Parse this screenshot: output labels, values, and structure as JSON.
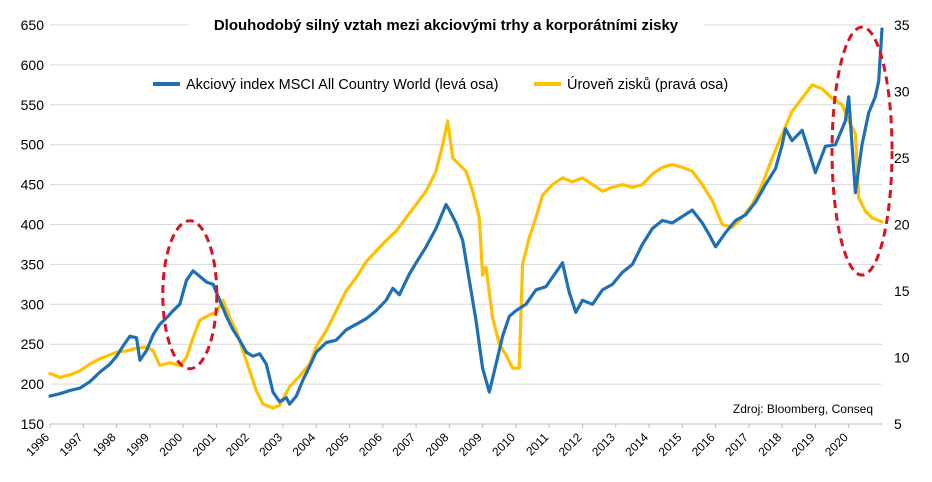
{
  "chart_data": {
    "type": "line",
    "title": "Dlouhodobý silný vztah mezi akciovými trhy a korporátními zisky",
    "source": "Zdroj: Bloomberg, Conseq",
    "x_range": [
      1996,
      2021
    ],
    "x_tick_labels": [
      "1996",
      "1997",
      "1998",
      "1999",
      "2000",
      "2001",
      "2002",
      "2003",
      "2004",
      "2005",
      "2006",
      "2007",
      "2008",
      "2009",
      "2010",
      "2011",
      "2012",
      "2013",
      "2014",
      "2015",
      "2016",
      "2017",
      "2018",
      "2019",
      "2020"
    ],
    "y_left": {
      "min": 150,
      "max": 650,
      "ticks": [
        150,
        200,
        250,
        300,
        350,
        400,
        450,
        500,
        550,
        600,
        650
      ]
    },
    "y_right": {
      "min": 5,
      "max": 35,
      "ticks": [
        5,
        10,
        15,
        20,
        25,
        30,
        35
      ]
    },
    "grid": "horizontal",
    "legend_position": "top",
    "series": [
      {
        "name": "Akciový index MSCI All Country World (levá osa)",
        "axis": "left",
        "color": "#1F6FB5",
        "points": [
          [
            1996.0,
            185
          ],
          [
            1996.3,
            188
          ],
          [
            1996.6,
            192
          ],
          [
            1996.9,
            195
          ],
          [
            1997.2,
            203
          ],
          [
            1997.5,
            215
          ],
          [
            1997.8,
            225
          ],
          [
            1998.0,
            235
          ],
          [
            1998.2,
            248
          ],
          [
            1998.4,
            260
          ],
          [
            1998.6,
            258
          ],
          [
            1998.7,
            230
          ],
          [
            1998.9,
            242
          ],
          [
            1999.1,
            262
          ],
          [
            1999.3,
            275
          ],
          [
            1999.5,
            283
          ],
          [
            1999.7,
            292
          ],
          [
            1999.9,
            300
          ],
          [
            2000.1,
            330
          ],
          [
            2000.3,
            342
          ],
          [
            2000.5,
            335
          ],
          [
            2000.7,
            328
          ],
          [
            2000.9,
            325
          ],
          [
            2001.1,
            305
          ],
          [
            2001.3,
            285
          ],
          [
            2001.5,
            268
          ],
          [
            2001.7,
            255
          ],
          [
            2001.9,
            240
          ],
          [
            2002.1,
            235
          ],
          [
            2002.3,
            238
          ],
          [
            2002.5,
            225
          ],
          [
            2002.7,
            190
          ],
          [
            2002.9,
            178
          ],
          [
            2003.1,
            183
          ],
          [
            2003.2,
            175
          ],
          [
            2003.4,
            185
          ],
          [
            2003.6,
            205
          ],
          [
            2003.8,
            222
          ],
          [
            2004.0,
            240
          ],
          [
            2004.3,
            252
          ],
          [
            2004.6,
            255
          ],
          [
            2004.9,
            268
          ],
          [
            2005.2,
            275
          ],
          [
            2005.5,
            282
          ],
          [
            2005.8,
            292
          ],
          [
            2006.1,
            305
          ],
          [
            2006.3,
            320
          ],
          [
            2006.5,
            312
          ],
          [
            2006.8,
            338
          ],
          [
            2007.0,
            352
          ],
          [
            2007.3,
            372
          ],
          [
            2007.6,
            395
          ],
          [
            2007.9,
            425
          ],
          [
            2008.0,
            418
          ],
          [
            2008.2,
            402
          ],
          [
            2008.4,
            380
          ],
          [
            2008.6,
            330
          ],
          [
            2008.8,
            280
          ],
          [
            2009.0,
            220
          ],
          [
            2009.2,
            190
          ],
          [
            2009.4,
            225
          ],
          [
            2009.6,
            260
          ],
          [
            2009.8,
            285
          ],
          [
            2010.0,
            292
          ],
          [
            2010.3,
            300
          ],
          [
            2010.6,
            318
          ],
          [
            2010.9,
            322
          ],
          [
            2011.2,
            340
          ],
          [
            2011.4,
            352
          ],
          [
            2011.6,
            315
          ],
          [
            2011.8,
            290
          ],
          [
            2012.0,
            305
          ],
          [
            2012.3,
            300
          ],
          [
            2012.6,
            318
          ],
          [
            2012.9,
            325
          ],
          [
            2013.2,
            340
          ],
          [
            2013.5,
            350
          ],
          [
            2013.8,
            375
          ],
          [
            2014.1,
            395
          ],
          [
            2014.4,
            405
          ],
          [
            2014.7,
            402
          ],
          [
            2015.0,
            410
          ],
          [
            2015.3,
            418
          ],
          [
            2015.6,
            402
          ],
          [
            2015.8,
            388
          ],
          [
            2016.0,
            372
          ],
          [
            2016.3,
            390
          ],
          [
            2016.6,
            405
          ],
          [
            2016.9,
            412
          ],
          [
            2017.2,
            428
          ],
          [
            2017.5,
            450
          ],
          [
            2017.8,
            470
          ],
          [
            2018.0,
            500
          ],
          [
            2018.1,
            520
          ],
          [
            2018.3,
            505
          ],
          [
            2018.6,
            518
          ],
          [
            2018.8,
            492
          ],
          [
            2019.0,
            465
          ],
          [
            2019.3,
            498
          ],
          [
            2019.6,
            500
          ],
          [
            2019.9,
            530
          ],
          [
            2020.0,
            560
          ],
          [
            2020.1,
            500
          ],
          [
            2020.2,
            440
          ],
          [
            2020.4,
            500
          ],
          [
            2020.6,
            540
          ],
          [
            2020.8,
            560
          ],
          [
            2020.9,
            580
          ],
          [
            2021.0,
            645
          ]
        ]
      },
      {
        "name": "Úroveň zisků (pravá osa)",
        "axis": "right",
        "color": "#FFC000",
        "points": [
          [
            1996.0,
            8.8
          ],
          [
            1996.3,
            8.5
          ],
          [
            1996.6,
            8.7
          ],
          [
            1996.9,
            9.0
          ],
          [
            1997.2,
            9.5
          ],
          [
            1997.5,
            9.9
          ],
          [
            1997.8,
            10.2
          ],
          [
            1998.0,
            10.4
          ],
          [
            1998.3,
            10.5
          ],
          [
            1998.6,
            10.7
          ],
          [
            1998.9,
            10.8
          ],
          [
            1999.1,
            10.5
          ],
          [
            1999.3,
            9.4
          ],
          [
            1999.6,
            9.6
          ],
          [
            1999.9,
            9.4
          ],
          [
            2000.1,
            10.0
          ],
          [
            2000.3,
            11.5
          ],
          [
            2000.5,
            12.8
          ],
          [
            2000.8,
            13.2
          ],
          [
            2001.0,
            13.4
          ],
          [
            2001.2,
            14.3
          ],
          [
            2001.4,
            13.0
          ],
          [
            2001.6,
            12.0
          ],
          [
            2001.8,
            10.5
          ],
          [
            2002.0,
            9.0
          ],
          [
            2002.2,
            7.5
          ],
          [
            2002.4,
            6.5
          ],
          [
            2002.7,
            6.2
          ],
          [
            2002.9,
            6.4
          ],
          [
            2003.2,
            7.8
          ],
          [
            2003.5,
            8.6
          ],
          [
            2003.8,
            9.5
          ],
          [
            2004.0,
            10.8
          ],
          [
            2004.3,
            12.0
          ],
          [
            2004.6,
            13.5
          ],
          [
            2004.9,
            15.0
          ],
          [
            2005.2,
            16.0
          ],
          [
            2005.5,
            17.2
          ],
          [
            2005.8,
            18.0
          ],
          [
            2006.1,
            18.8
          ],
          [
            2006.4,
            19.5
          ],
          [
            2006.7,
            20.5
          ],
          [
            2007.0,
            21.5
          ],
          [
            2007.3,
            22.5
          ],
          [
            2007.6,
            24.0
          ],
          [
            2007.8,
            26.0
          ],
          [
            2007.95,
            27.8
          ],
          [
            2008.1,
            25.0
          ],
          [
            2008.3,
            24.5
          ],
          [
            2008.5,
            24.0
          ],
          [
            2008.7,
            22.5
          ],
          [
            2008.9,
            20.5
          ],
          [
            2009.0,
            16.2
          ],
          [
            2009.1,
            16.8
          ],
          [
            2009.3,
            13.0
          ],
          [
            2009.5,
            11.0
          ],
          [
            2009.7,
            10.2
          ],
          [
            2009.9,
            9.2
          ],
          [
            2010.1,
            9.2
          ],
          [
            2010.2,
            17.0
          ],
          [
            2010.4,
            19.0
          ],
          [
            2010.6,
            20.5
          ],
          [
            2010.8,
            22.2
          ],
          [
            2011.1,
            23.0
          ],
          [
            2011.4,
            23.5
          ],
          [
            2011.7,
            23.2
          ],
          [
            2012.0,
            23.5
          ],
          [
            2012.3,
            23.0
          ],
          [
            2012.6,
            22.5
          ],
          [
            2012.9,
            22.8
          ],
          [
            2013.2,
            23.0
          ],
          [
            2013.5,
            22.8
          ],
          [
            2013.8,
            23.0
          ],
          [
            2014.1,
            23.8
          ],
          [
            2014.4,
            24.3
          ],
          [
            2014.7,
            24.5
          ],
          [
            2015.0,
            24.3
          ],
          [
            2015.3,
            24.0
          ],
          [
            2015.6,
            23.0
          ],
          [
            2015.9,
            21.8
          ],
          [
            2016.2,
            20.0
          ],
          [
            2016.5,
            19.8
          ],
          [
            2016.8,
            20.5
          ],
          [
            2017.1,
            21.5
          ],
          [
            2017.4,
            23.0
          ],
          [
            2017.7,
            25.0
          ],
          [
            2018.0,
            26.8
          ],
          [
            2018.3,
            28.5
          ],
          [
            2018.6,
            29.5
          ],
          [
            2018.9,
            30.5
          ],
          [
            2019.2,
            30.2
          ],
          [
            2019.5,
            29.5
          ],
          [
            2019.8,
            29.0
          ],
          [
            2020.0,
            27.8
          ],
          [
            2020.2,
            26.8
          ],
          [
            2020.3,
            22.0
          ],
          [
            2020.5,
            21.0
          ],
          [
            2020.7,
            20.5
          ],
          [
            2020.9,
            20.3
          ],
          [
            2021.0,
            20.2
          ]
        ]
      }
    ],
    "annotations": [
      {
        "type": "dashed-ellipse",
        "color": "#D9141E",
        "center": [
          2000.2,
          312
        ],
        "note": "around 2000 peak"
      },
      {
        "type": "dashed-ellipse",
        "color": "#D9141E",
        "center": [
          2020.4,
          492
        ],
        "note": "around 2020"
      }
    ]
  }
}
